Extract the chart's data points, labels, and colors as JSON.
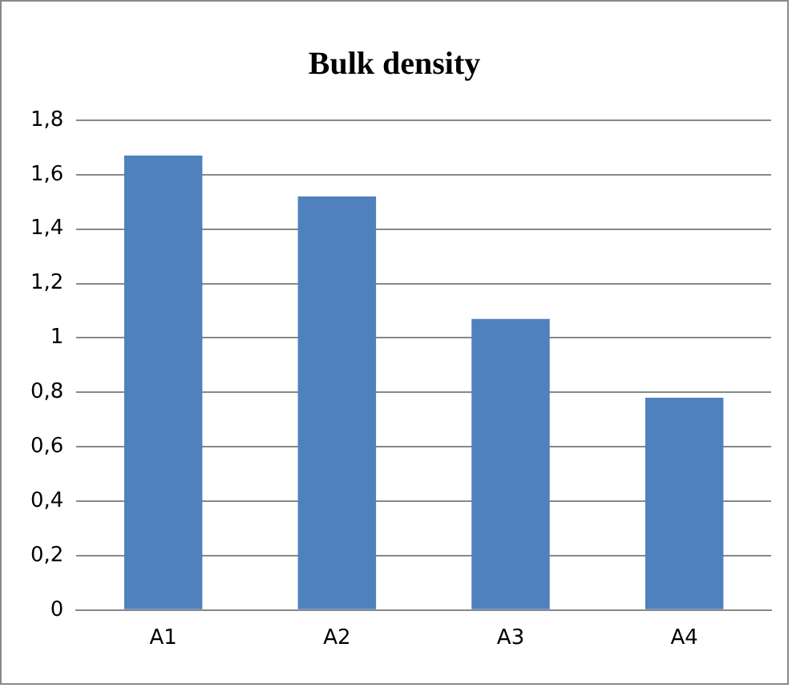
{
  "chart_data": {
    "type": "bar",
    "title": "Bulk density",
    "categories": [
      "A1",
      "A2",
      "A3",
      "A4"
    ],
    "values": [
      1.67,
      1.52,
      1.07,
      0.78
    ],
    "color": "#4f81bd",
    "ylim": [
      0,
      1.8
    ],
    "yticks": [
      0,
      {
        "value": 0.2,
        "label": "0,2"
      },
      {
        "value": 0.4,
        "label": "0,4"
      },
      {
        "value": 0.6,
        "label": "0,6"
      },
      {
        "value": 0.8,
        "label": "0,8"
      },
      1,
      {
        "value": 1.2,
        "label": "1,2"
      },
      {
        "value": 1.4,
        "label": "1,4"
      },
      {
        "value": 1.6,
        "label": "1,6"
      },
      {
        "value": 1.8,
        "label": "1,8"
      }
    ],
    "grid": "y",
    "legend": false
  }
}
